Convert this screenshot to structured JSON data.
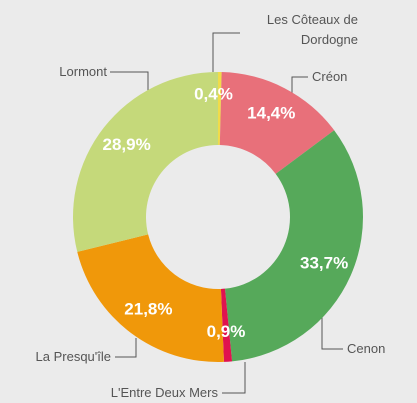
{
  "chart_data": {
    "type": "donut",
    "categories": [
      "Les Côteaux de Dordogne",
      "Créon",
      "Cenon",
      "L'Entre Deux Mers",
      "La Presqu'île",
      "Lormont"
    ],
    "values": [
      0.4,
      14.4,
      33.7,
      0.9,
      21.8,
      28.9
    ],
    "value_labels": [
      "0,4%",
      "14,4%",
      "33,7%",
      "0,9%",
      "21,8%",
      "28,9%"
    ],
    "colors": [
      "#f0dc4a",
      "#e8707a",
      "#56a95a",
      "#e0134f",
      "#f0980a",
      "#c5d97a"
    ]
  }
}
